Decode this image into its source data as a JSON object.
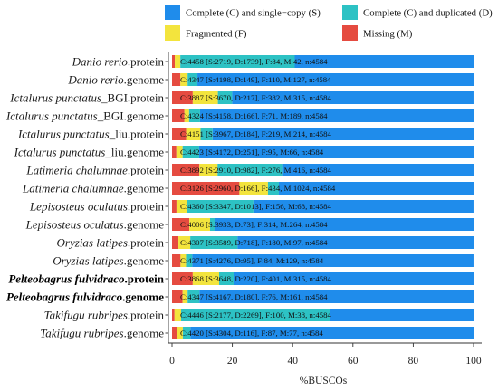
{
  "chart_data": {
    "type": "bar",
    "orientation": "horizontal",
    "stacked": true,
    "xlabel": "%BUSCOs",
    "xlim": [
      0,
      100
    ],
    "xticks": [
      0,
      20,
      40,
      60,
      80,
      100
    ],
    "grid": false,
    "legend_position": "top",
    "categories": [
      "Danio rerio.protein",
      "Danio rerio.genome",
      "Ictalurus punctatus_BGI.protein",
      "Ictalurus punctatus_BGI.genome",
      "Ictalurus punctatus_liu.protein",
      "Ictalurus punctatus_liu.genome",
      "Latimeria chalumnae.protein",
      "Latimeria chalumnae.genome",
      "Lepisosteus oculatus.protein",
      "Lepisosteus oculatus.genome",
      "Oryzias latipes.protein",
      "Oryzias latipes.genome",
      "Pelteobagrus fulvidraco.protein",
      "Pelteobagrus fulvidraco.genome",
      "Takifugu rubripes.protein",
      "Takifugu rubripes.genome"
    ],
    "highlighted": [
      false,
      false,
      false,
      false,
      false,
      false,
      false,
      false,
      false,
      false,
      false,
      false,
      true,
      true,
      false,
      false
    ],
    "series": [
      {
        "name": "Complete (C) and single−copy (S)",
        "color": "#1F8CEB",
        "values": [
          59.32,
          91.58,
          80.06,
          90.71,
          86.54,
          91.01,
          63.48,
          64.57,
          73.01,
          85.8,
          78.29,
          93.28,
          79.58,
          90.9,
          47.49,
          93.89
        ]
      },
      {
        "name": "Complete (C) and duplicated (D)",
        "color": "#2DC2C4",
        "values": [
          37.94,
          3.25,
          4.73,
          3.62,
          4.01,
          5.48,
          21.42,
          3.62,
          22.1,
          1.59,
          15.66,
          2.07,
          4.8,
          3.93,
          49.5,
          2.53
        ]
      },
      {
        "name": "Fragmented (F)",
        "color": "#F3E43D",
        "values": [
          1.83,
          2.4,
          8.33,
          1.55,
          4.78,
          2.07,
          6.02,
          9.47,
          3.4,
          6.85,
          3.93,
          1.83,
          8.75,
          1.66,
          2.18,
          1.9
        ]
      },
      {
        "name": "Missing (M)",
        "color": "#E54B40",
        "values": [
          0.92,
          2.77,
          6.87,
          4.12,
          4.67,
          1.44,
          9.08,
          22.34,
          1.48,
          5.76,
          2.12,
          2.81,
          6.87,
          3.51,
          0.83,
          1.68
        ]
      }
    ],
    "annotations": [
      "C:4458 [S:2719, D:1739], F:84, M:42, n:4584",
      "C:4347 [S:4198, D:149], F:110, M:127, n:4584",
      "C:3887 [S:3670, D:217], F:382, M:315, n:4584",
      "C:4324 [S:4158, D:166], F:71, M:189, n:4584",
      "C:4151 [S:3967, D:184], F:219, M:214, n:4584",
      "C:4423 [S:4172, D:251], F:95, M:66, n:4584",
      "C:3892 [S:2910, D:982], F:276, M:416, n:4584",
      "C:3126 [S:2960, D:166], F:434, M:1024, n:4584",
      "C:4360 [S:3347, D:1013], F:156, M:68, n:4584",
      "C:4006 [S:3933, D:73], F:314, M:264, n:4584",
      "C:4307 [S:3589, D:718], F:180, M:97, n:4584",
      "C:4371 [S:4276, D:95], F:84, M:129, n:4584",
      "C:3868 [S:3648, D:220], F:401, M:315, n:4584",
      "C:4347 [S:4167, D:180], F:76, M:161, n:4584",
      "C:4446 [S:2177, D:2269], F:100, M:38, n:4584",
      "C:4420 [S:4304, D:116], F:87, M:77, n:4584"
    ]
  }
}
